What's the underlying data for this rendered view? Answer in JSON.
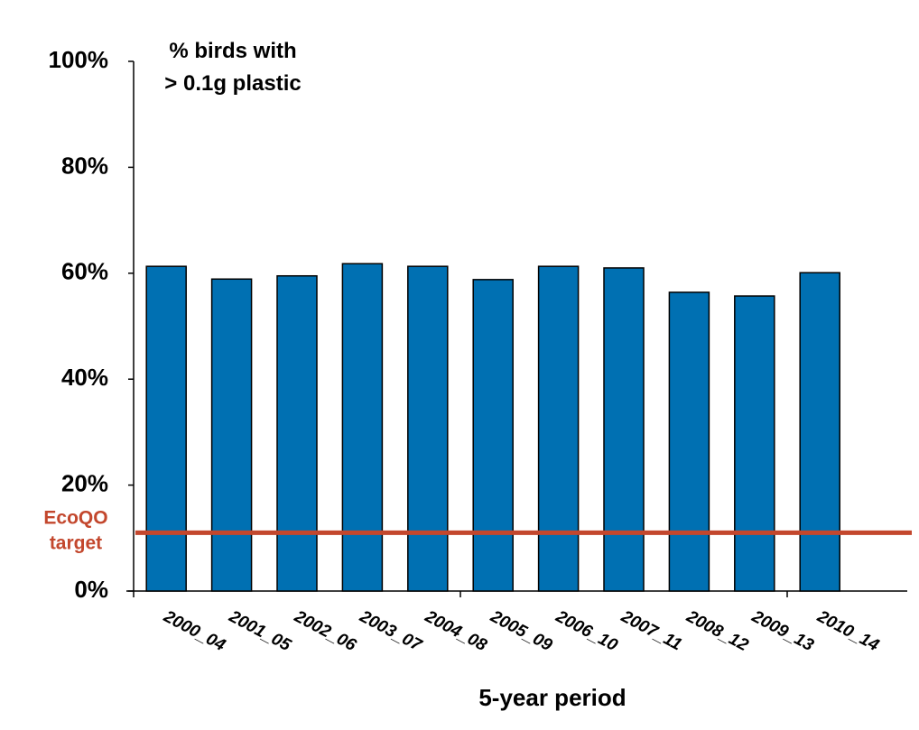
{
  "chart_data": {
    "type": "bar",
    "annotation": [
      "% birds with",
      "> 0.1g plastic"
    ],
    "x_label": "5-year period",
    "categories": [
      "2000_04",
      "2001_05",
      "2002_06",
      "2003_07",
      "2004_08",
      "2005_09",
      "2006_10",
      "2007_11",
      "2008_12",
      "2009_13",
      "2010_14"
    ],
    "values": [
      61.3,
      58.9,
      59.5,
      61.8,
      61.3,
      58.8,
      61.3,
      61.0,
      56.4,
      55.7,
      60.1
    ],
    "color": "#0070b2",
    "ylim": [
      0,
      100
    ],
    "yticks": [
      {
        "value": 0,
        "label": "0%"
      },
      {
        "value": 20,
        "label": "20%"
      },
      {
        "value": 40,
        "label": "40%"
      },
      {
        "value": 60,
        "label": "60%"
      },
      {
        "value": 80,
        "label": "80%"
      },
      {
        "value": 100,
        "label": "100%"
      }
    ],
    "target": {
      "label": [
        "EcoQO",
        "target"
      ],
      "value": 11,
      "color": "#c3472d"
    }
  }
}
